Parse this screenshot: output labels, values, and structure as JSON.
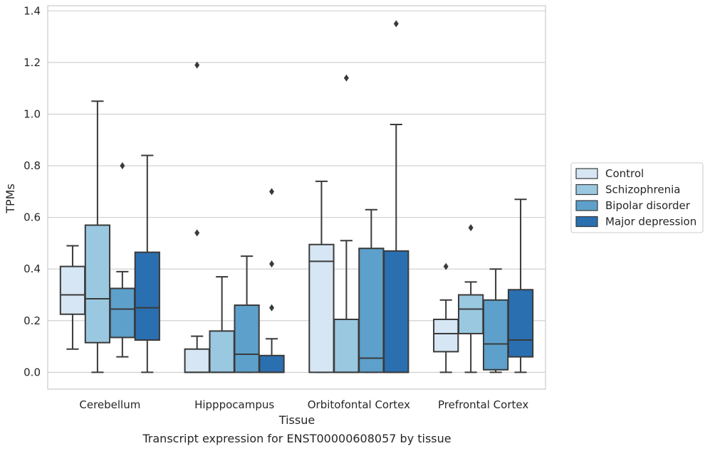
{
  "caption": "Transcript expression for ENST00000608057 by tissue",
  "chart_data": {
    "type": "box",
    "xlabel": "Tissue",
    "ylabel": "TPMs",
    "ylim": [
      -0.065,
      1.42
    ],
    "yticks": [
      "0.0",
      "0.2",
      "0.4",
      "0.6",
      "0.8",
      "1.0",
      "1.2",
      "1.4"
    ],
    "grid": "horizontal",
    "legend_position": "right",
    "categories": [
      "Cerebellum",
      "Hipppocampus",
      "Orbitofontal Cortex",
      "Prefrontal Cortex"
    ],
    "series": [
      {
        "name": "Control",
        "color": "#d6e6f4",
        "boxes": [
          {
            "whislo": 0.09,
            "q1": 0.225,
            "med": 0.3,
            "q3": 0.41,
            "whishi": 0.49,
            "fliers": []
          },
          {
            "whislo": 0.0,
            "q1": 0.0,
            "med": 0.0,
            "q3": 0.09,
            "whishi": 0.14,
            "fliers": [
              0.54,
              1.19
            ]
          },
          {
            "whislo": 0.0,
            "q1": 0.0,
            "med": 0.43,
            "q3": 0.495,
            "whishi": 0.74,
            "fliers": []
          },
          {
            "whislo": 0.0,
            "q1": 0.08,
            "med": 0.15,
            "q3": 0.205,
            "whishi": 0.28,
            "fliers": [
              0.41
            ]
          }
        ]
      },
      {
        "name": "Schizophrenia",
        "color": "#9ac8e0",
        "boxes": [
          {
            "whislo": 0.0,
            "q1": 0.115,
            "med": 0.285,
            "q3": 0.57,
            "whishi": 1.05,
            "fliers": []
          },
          {
            "whislo": 0.0,
            "q1": 0.0,
            "med": 0.0,
            "q3": 0.16,
            "whishi": 0.37,
            "fliers": []
          },
          {
            "whislo": 0.0,
            "q1": 0.0,
            "med": 0.0,
            "q3": 0.205,
            "whishi": 0.51,
            "fliers": [
              1.14
            ]
          },
          {
            "whislo": 0.0,
            "q1": 0.15,
            "med": 0.245,
            "q3": 0.3,
            "whishi": 0.35,
            "fliers": [
              0.56
            ]
          }
        ]
      },
      {
        "name": "Bipolar disorder",
        "color": "#5da0cb",
        "boxes": [
          {
            "whislo": 0.06,
            "q1": 0.135,
            "med": 0.245,
            "q3": 0.325,
            "whishi": 0.39,
            "fliers": [
              0.8
            ]
          },
          {
            "whislo": 0.0,
            "q1": 0.0,
            "med": 0.07,
            "q3": 0.26,
            "whishi": 0.45,
            "fliers": []
          },
          {
            "whislo": 0.0,
            "q1": 0.0,
            "med": 0.055,
            "q3": 0.48,
            "whishi": 0.63,
            "fliers": []
          },
          {
            "whislo": 0.0,
            "q1": 0.01,
            "med": 0.11,
            "q3": 0.28,
            "whishi": 0.4,
            "fliers": []
          }
        ]
      },
      {
        "name": "Major depression",
        "color": "#2a6fb0",
        "boxes": [
          {
            "whislo": 0.0,
            "q1": 0.125,
            "med": 0.25,
            "q3": 0.465,
            "whishi": 0.84,
            "fliers": []
          },
          {
            "whislo": 0.0,
            "q1": 0.0,
            "med": 0.0,
            "q3": 0.065,
            "whishi": 0.13,
            "fliers": [
              0.25,
              0.42,
              0.7
            ]
          },
          {
            "whislo": 0.0,
            "q1": 0.0,
            "med": 0.0,
            "q3": 0.47,
            "whishi": 0.96,
            "fliers": [
              1.35
            ]
          },
          {
            "whislo": 0.0,
            "q1": 0.06,
            "med": 0.125,
            "q3": 0.32,
            "whishi": 0.67,
            "fliers": []
          }
        ]
      }
    ]
  }
}
